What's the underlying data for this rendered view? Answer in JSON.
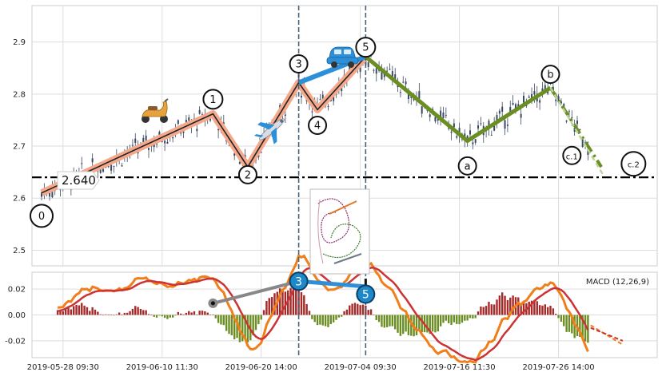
{
  "chart_data": [
    {
      "type": "candlestick",
      "panel": "price",
      "xlabel": "",
      "ylabel": "",
      "ylim": [
        2.47,
        2.97
      ],
      "yticks": [
        2.5,
        2.6,
        2.7,
        2.8,
        2.9
      ],
      "ytick_labels": [
        "2.5",
        "2.6",
        "2.7",
        "2.8",
        "2.9"
      ],
      "grid": true,
      "price_level": {
        "value": 2.64,
        "label": "2.640"
      },
      "series": [
        {
          "name": "impulse",
          "points": [
            [
              0,
              2.61
            ],
            [
              64,
              2.762
            ],
            [
              77,
              2.66
            ],
            [
              96,
              2.822
            ],
            [
              103,
              2.77
            ],
            [
              121,
              2.872
            ]
          ]
        },
        {
          "name": "correction",
          "points": [
            [
              121,
              2.872
            ],
            [
              159,
              2.71
            ],
            [
              190,
              2.812
            ],
            [
              209,
              2.66
            ]
          ]
        }
      ],
      "wave_labels": [
        {
          "key": "w0",
          "text": "0"
        },
        {
          "key": "w1",
          "text": "1"
        },
        {
          "key": "w2",
          "text": "2"
        },
        {
          "key": "w3",
          "text": "3"
        },
        {
          "key": "w4",
          "text": "4"
        },
        {
          "key": "w5",
          "text": "5"
        },
        {
          "key": "wa",
          "text": "a"
        },
        {
          "key": "wb",
          "text": "b"
        },
        {
          "key": "wc1",
          "text": "c.1"
        },
        {
          "key": "wc2",
          "text": "c.2"
        }
      ],
      "annotations": [
        {
          "name": "scooter-icon"
        },
        {
          "name": "airplane-icon"
        },
        {
          "name": "car-icon"
        },
        {
          "name": "wave-diagram-thumbnail"
        }
      ]
    },
    {
      "type": "line",
      "panel": "macd",
      "title": "MACD (12,26,9)",
      "ylim": [
        -0.033,
        0.033
      ],
      "yticks": [
        -0.02,
        0.0,
        0.02
      ],
      "ytick_labels": [
        "-0.02",
        "0.00",
        "0.02"
      ],
      "grid": true,
      "series": [
        {
          "name": "macd",
          "values": []
        },
        {
          "name": "signal",
          "values": []
        },
        {
          "name": "histogram",
          "values": []
        }
      ],
      "wave_markers": [
        {
          "text": "3"
        },
        {
          "text": "5"
        }
      ]
    }
  ],
  "x_axis": {
    "tick_labels": [
      "2019-05-28 09:30",
      "2019-06-10 11:30",
      "2019-06-20 14:00",
      "2019-07-04 09:30",
      "2019-07-16 11:30",
      "2019-07-26 14:00"
    ],
    "tick_index": [
      8,
      45,
      82,
      119,
      156,
      193
    ]
  },
  "colors": {
    "candle": "#3a4a63",
    "impulse_shadow": "#f4a98c",
    "impulse_line": "#222222",
    "wave3_line": "#2c8fd8",
    "correction_line": "#6b8e23",
    "correction_proj": "#bcd39c",
    "macd": "#f07e1a",
    "signal": "#cc3333",
    "hist_pos": "#a52a2a",
    "hist_neg": "#6b8e23",
    "connector": "#888888",
    "marker_fill": "#1e88c8",
    "vline": "#4a6278"
  }
}
